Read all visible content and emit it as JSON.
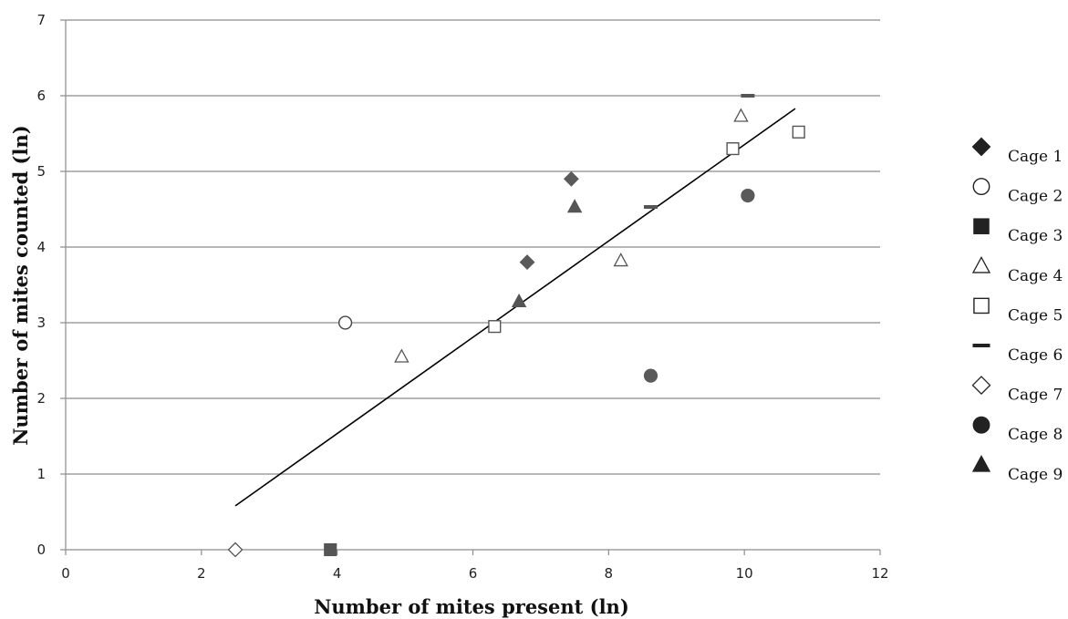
{
  "chart_data": {
    "type": "scatter",
    "title": "",
    "xlabel": "Number of mites present (ln)",
    "ylabel": "Number of mites counted (ln)",
    "xlim": [
      0,
      12
    ],
    "ylim": [
      0,
      7
    ],
    "xticks": [
      0,
      2,
      4,
      6,
      8,
      10,
      12
    ],
    "yticks": [
      0,
      1,
      2,
      3,
      4,
      5,
      6,
      7
    ],
    "grid": "horizontal",
    "legend_position": "right",
    "series": [
      {
        "name": "Cage 1",
        "marker": "diamond-filled",
        "color": "#5a5a5a",
        "points": [
          [
            6.8,
            3.8
          ],
          [
            7.45,
            4.9
          ]
        ]
      },
      {
        "name": "Cage 2",
        "marker": "circle-open",
        "color": "#444444",
        "points": [
          [
            4.12,
            3.0
          ]
        ]
      },
      {
        "name": "Cage 3",
        "marker": "square-filled",
        "color": "#555555",
        "points": [
          [
            3.9,
            0.0
          ]
        ]
      },
      {
        "name": "Cage 4",
        "marker": "triangle-open",
        "color": "#555555",
        "points": [
          [
            4.95,
            2.55
          ],
          [
            8.18,
            3.82
          ],
          [
            9.95,
            5.73
          ]
        ]
      },
      {
        "name": "Cage 5",
        "marker": "square-open",
        "color": "#555555",
        "points": [
          [
            6.32,
            2.95
          ],
          [
            9.83,
            5.3
          ],
          [
            10.8,
            5.52
          ]
        ]
      },
      {
        "name": "Cage 6",
        "marker": "dash",
        "color": "#555555",
        "points": [
          [
            8.62,
            4.53
          ],
          [
            10.05,
            6.0
          ]
        ]
      },
      {
        "name": "Cage 7",
        "marker": "diamond-open",
        "color": "#555555",
        "points": [
          [
            2.5,
            0.0
          ]
        ]
      },
      {
        "name": "Cage 8",
        "marker": "circle-filled",
        "color": "#5a5a5a",
        "points": [
          [
            8.62,
            2.3
          ],
          [
            10.05,
            4.68
          ]
        ]
      },
      {
        "name": "Cage 9",
        "marker": "triangle-filled",
        "color": "#555555",
        "points": [
          [
            6.68,
            3.28
          ],
          [
            7.5,
            4.53
          ]
        ]
      }
    ],
    "trendline": {
      "type": "linear",
      "color": "#000000",
      "x": [
        2.5,
        10.75
      ],
      "y": [
        0.58,
        5.83
      ]
    }
  }
}
